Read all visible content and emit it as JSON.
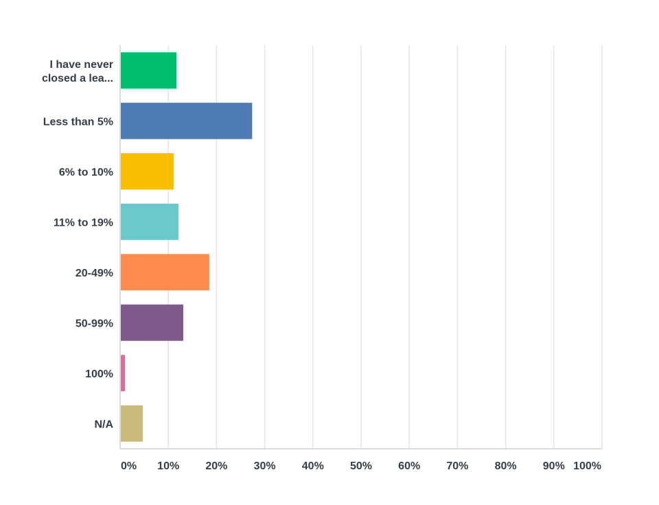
{
  "chart_data": {
    "type": "bar",
    "orientation": "horizontal",
    "categories": [
      [
        "I have never",
        "closed a lea..."
      ],
      [
        "Less than 5%"
      ],
      [
        "6% to 10%"
      ],
      [
        "11% to 19%"
      ],
      [
        "20-49%"
      ],
      [
        "50-99%"
      ],
      [
        "100%"
      ],
      [
        "N/A"
      ]
    ],
    "values": [
      11.7,
      27.4,
      11.1,
      12.1,
      18.5,
      13.1,
      1.0,
      4.7
    ],
    "colors": [
      "#00bf6f",
      "#507cb6",
      "#f9be00",
      "#6bc8cd",
      "#ff8b4f",
      "#7f5a8f",
      "#da6f9b",
      "#c9b97c"
    ],
    "x_ticks": [
      "0%",
      "10%",
      "20%",
      "30%",
      "40%",
      "50%",
      "60%",
      "70%",
      "80%",
      "90%",
      "100%"
    ],
    "xlim": [
      0,
      100
    ],
    "grid": true,
    "legend": "none",
    "title": "",
    "xlabel": "",
    "ylabel": ""
  }
}
